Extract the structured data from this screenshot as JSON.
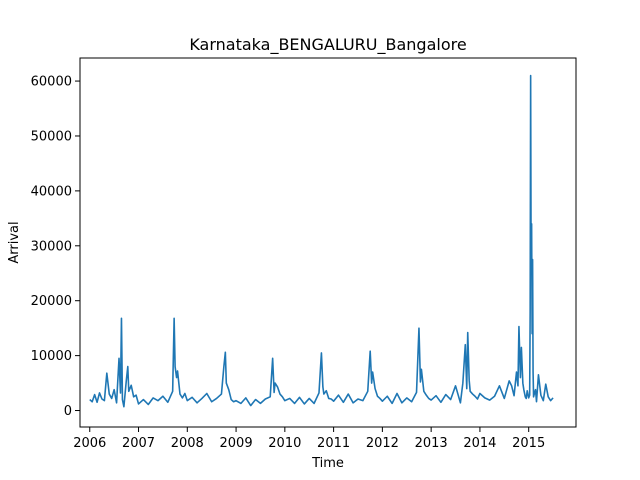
{
  "chart_data": {
    "type": "line",
    "title": "Karnataka_BENGALURU_Bangalore",
    "xlabel": "Time",
    "ylabel": "Arrival",
    "xlim": [
      2005.8,
      2015.97
    ],
    "ylim": [
      -3000,
      64200
    ],
    "xticks": [
      2006,
      2007,
      2008,
      2009,
      2010,
      2011,
      2012,
      2013,
      2014,
      2015
    ],
    "xtick_labels": [
      "2006",
      "2007",
      "2008",
      "2009",
      "2010",
      "2011",
      "2012",
      "2013",
      "2014",
      "2015"
    ],
    "yticks": [
      0,
      10000,
      20000,
      30000,
      40000,
      50000,
      60000
    ],
    "ytick_labels": [
      "0",
      "10000",
      "20000",
      "30000",
      "40000",
      "50000",
      "60000"
    ],
    "grid": false,
    "color": "#1f77b4",
    "series": [
      {
        "x": [
          2006.0,
          2006.05,
          2006.1,
          2006.15,
          2006.2,
          2006.25,
          2006.3,
          2006.35,
          2006.4,
          2006.45,
          2006.5,
          2006.55,
          2006.6,
          2006.63,
          2006.65,
          2006.67,
          2006.7,
          2006.75,
          2006.78,
          2006.8,
          2006.85,
          2006.9,
          2006.95,
          2007.0,
          2007.1,
          2007.2,
          2007.3,
          2007.4,
          2007.5,
          2007.6,
          2007.7,
          2007.73,
          2007.75,
          2007.78,
          2007.8,
          2007.85,
          2007.9,
          2007.95,
          2008.0,
          2008.1,
          2008.2,
          2008.3,
          2008.4,
          2008.5,
          2008.6,
          2008.7,
          2008.75,
          2008.78,
          2008.8,
          2008.85,
          2008.9,
          2008.95,
          2009.0,
          2009.1,
          2009.2,
          2009.3,
          2009.4,
          2009.5,
          2009.6,
          2009.7,
          2009.75,
          2009.78,
          2009.8,
          2009.85,
          2009.9,
          2009.95,
          2010.0,
          2010.1,
          2010.2,
          2010.3,
          2010.4,
          2010.5,
          2010.6,
          2010.7,
          2010.75,
          2010.78,
          2010.8,
          2010.85,
          2010.9,
          2010.95,
          2011.0,
          2011.1,
          2011.2,
          2011.3,
          2011.4,
          2011.5,
          2011.6,
          2011.7,
          2011.75,
          2011.78,
          2011.8,
          2011.85,
          2011.9,
          2011.95,
          2012.0,
          2012.1,
          2012.2,
          2012.3,
          2012.4,
          2012.5,
          2012.6,
          2012.7,
          2012.75,
          2012.78,
          2012.8,
          2012.85,
          2012.9,
          2012.95,
          2013.0,
          2013.1,
          2013.2,
          2013.3,
          2013.4,
          2013.5,
          2013.6,
          2013.65,
          2013.7,
          2013.73,
          2013.75,
          2013.78,
          2013.8,
          2013.85,
          2013.9,
          2013.95,
          2014.0,
          2014.1,
          2014.2,
          2014.3,
          2014.4,
          2014.5,
          2014.6,
          2014.65,
          2014.7,
          2014.75,
          2014.78,
          2014.8,
          2014.83,
          2014.85,
          2014.88,
          2014.9,
          2014.93,
          2014.95,
          2014.97,
          2015.0,
          2015.02,
          2015.03,
          2015.04,
          2015.05,
          2015.06,
          2015.07,
          2015.08,
          2015.09,
          2015.1,
          2015.12,
          2015.14,
          2015.16,
          2015.2,
          2015.25,
          2015.3,
          2015.35,
          2015.4,
          2015.45,
          2015.5
        ],
        "y": [
          2000,
          1600,
          2900,
          1500,
          3200,
          2100,
          1800,
          6800,
          3000,
          2200,
          3800,
          1400,
          9500,
          3200,
          16800,
          2000,
          700,
          5500,
          8000,
          3500,
          4600,
          2500,
          2800,
          1200,
          2000,
          1100,
          2300,
          1800,
          2600,
          1500,
          3500,
          16800,
          8000,
          6000,
          7200,
          3000,
          2300,
          3100,
          1800,
          2400,
          1400,
          2200,
          3100,
          1600,
          2200,
          3000,
          8000,
          10600,
          5000,
          3800,
          2000,
          1600,
          1800,
          1300,
          2300,
          900,
          2000,
          1300,
          2100,
          2500,
          9500,
          3300,
          5000,
          4300,
          3000,
          2500,
          1800,
          2200,
          1300,
          2400,
          1200,
          2200,
          1300,
          3200,
          10500,
          4300,
          3000,
          3600,
          2200,
          2100,
          1700,
          2800,
          1500,
          3000,
          1400,
          2100,
          1800,
          3500,
          10800,
          5000,
          7000,
          4000,
          2600,
          2200,
          1700,
          2600,
          1300,
          3100,
          1400,
          2300,
          1600,
          3300,
          15000,
          5200,
          7500,
          3500,
          2800,
          2200,
          1900,
          2700,
          1500,
          2900,
          2000,
          4500,
          1400,
          5000,
          12000,
          4000,
          14200,
          5500,
          3500,
          3000,
          2600,
          2100,
          3100,
          2300,
          1900,
          2600,
          4500,
          2200,
          5400,
          4500,
          2700,
          7000,
          4500,
          15300,
          6000,
          11500,
          5000,
          3800,
          2500,
          2200,
          3600,
          2300,
          2800,
          18000,
          61000,
          25000,
          34000,
          14000,
          27500,
          7000,
          2500,
          3200,
          3800,
          1600,
          6500,
          2800,
          1800,
          4800,
          2500,
          1800,
          2300
        ]
      }
    ]
  }
}
